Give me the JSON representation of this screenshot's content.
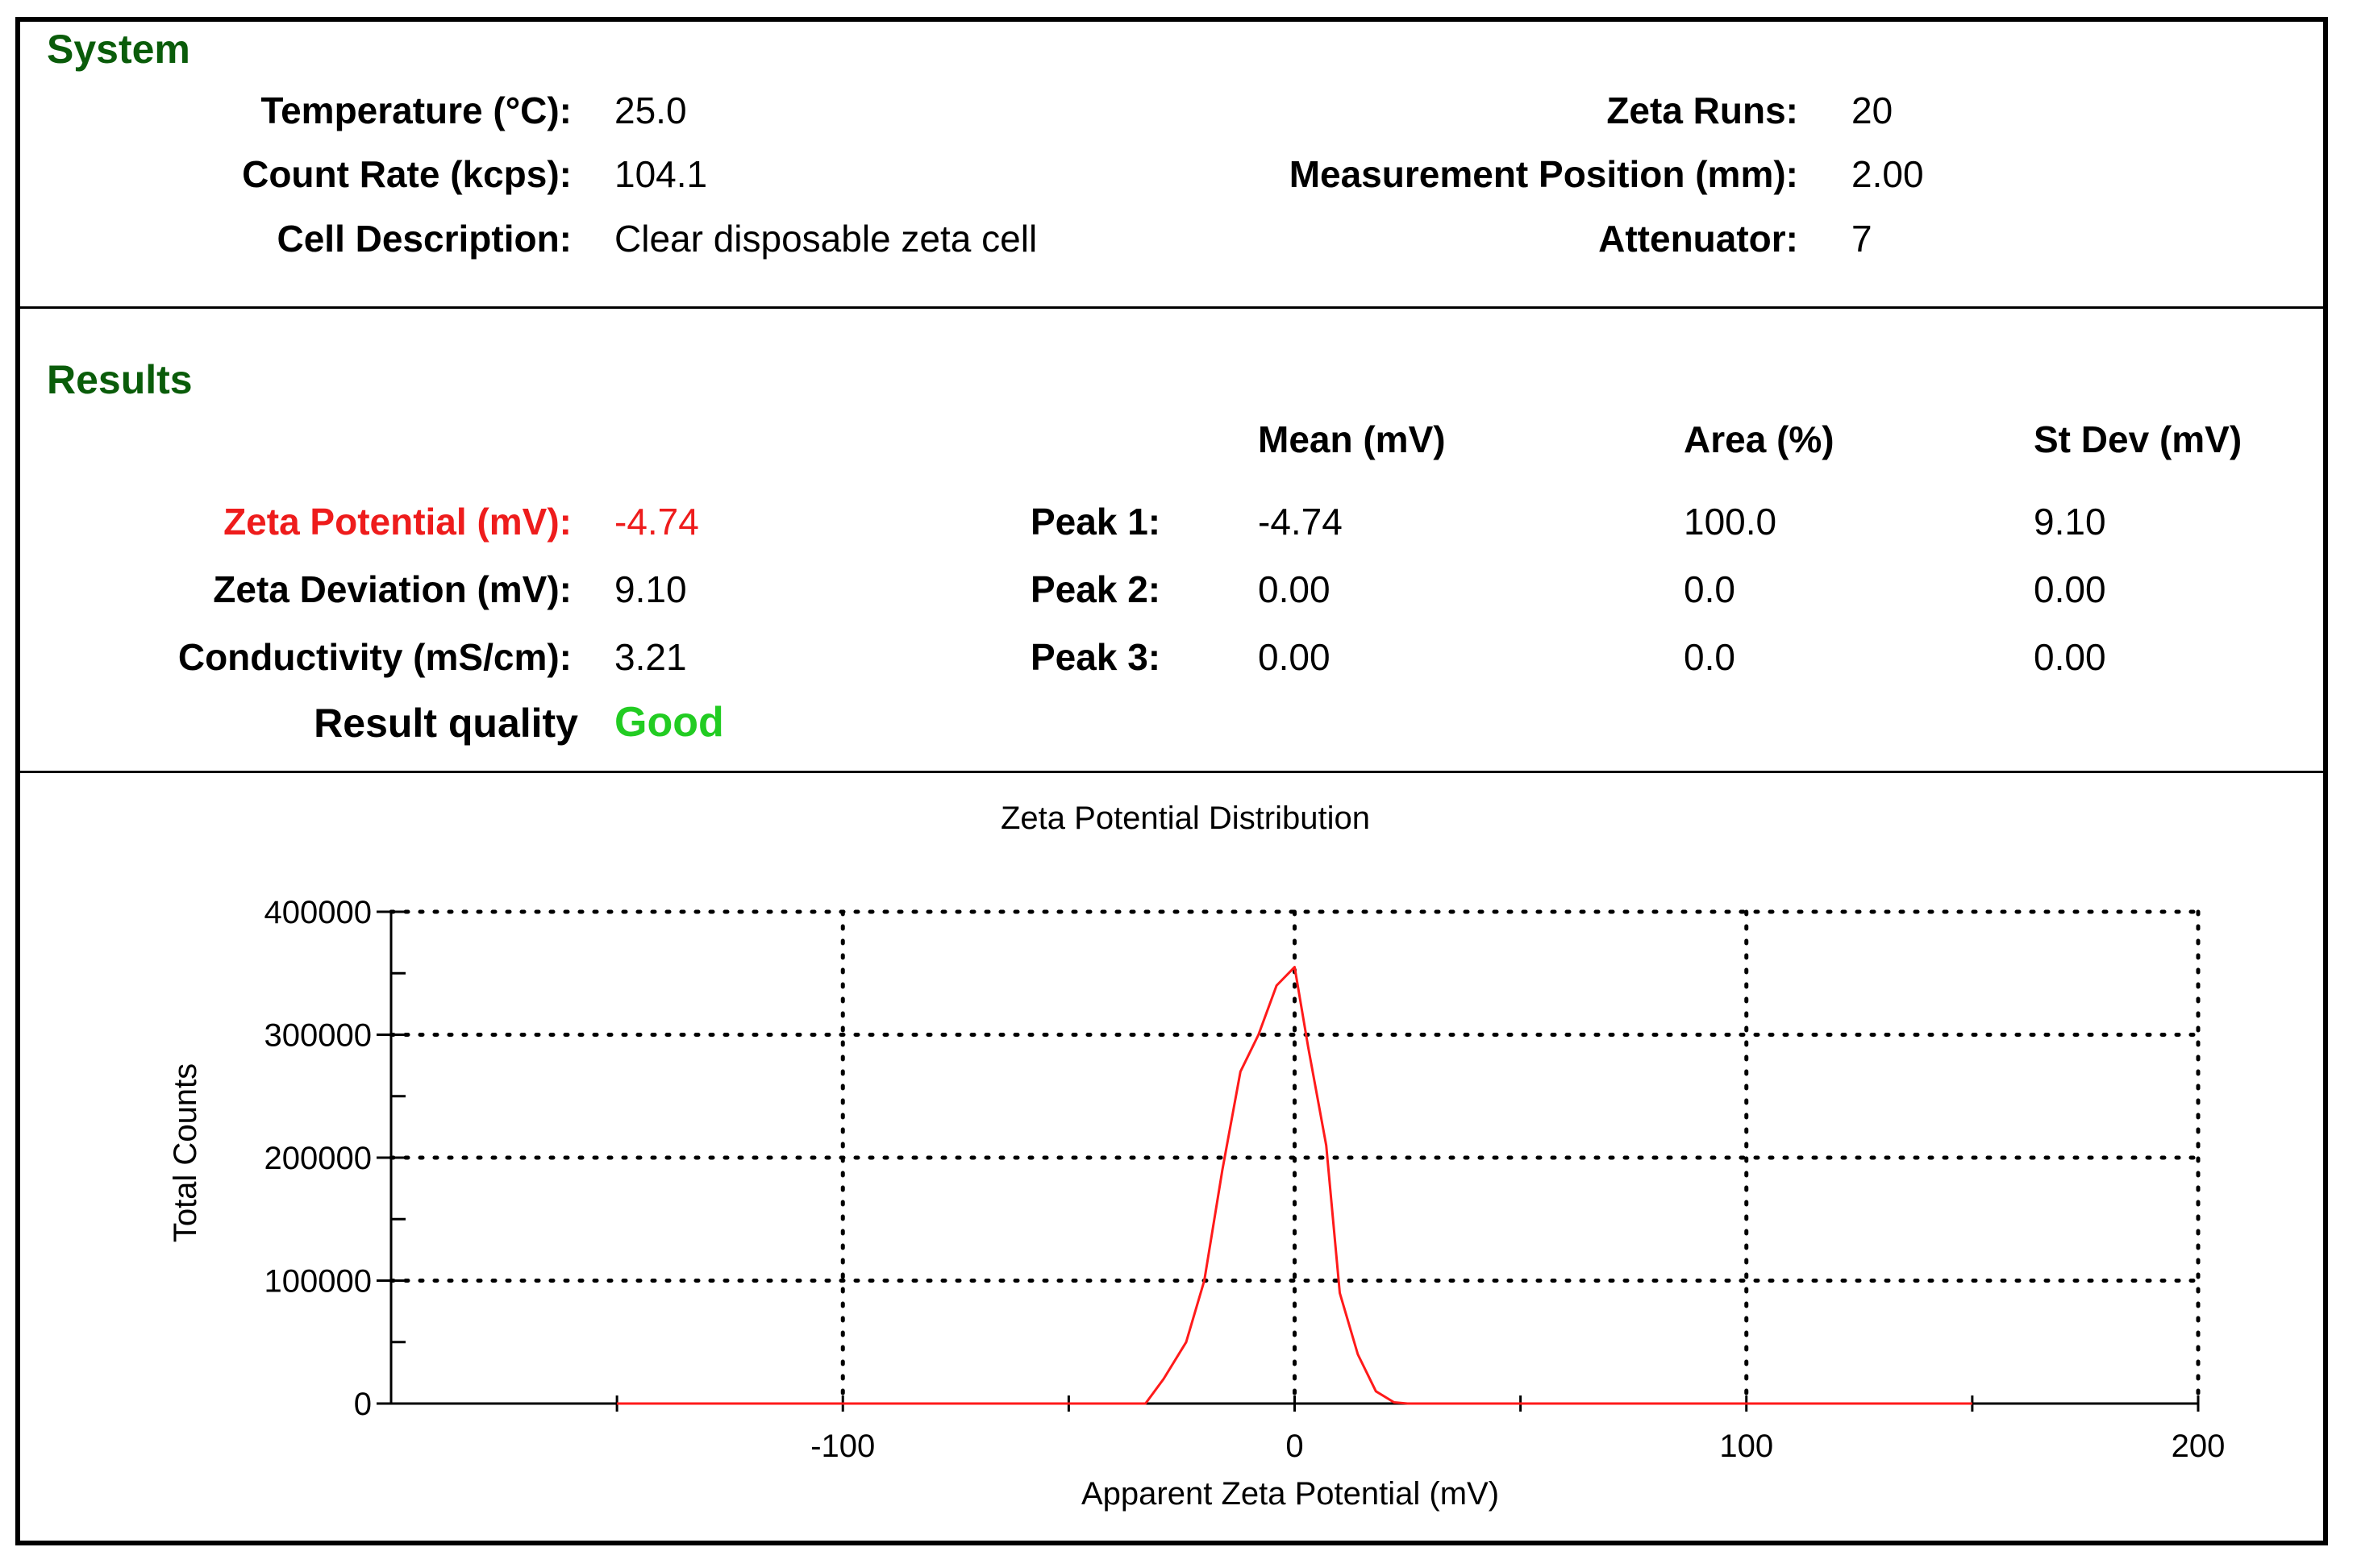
{
  "system": {
    "title": "System",
    "temperature_label": "Temperature (°C):",
    "temperature_value": "25.0",
    "count_rate_label": "Count Rate (kcps):",
    "count_rate_value": "104.1",
    "cell_label": "Cell Description:",
    "cell_value": "Clear disposable zeta cell",
    "runs_label": "Zeta Runs:",
    "runs_value": "20",
    "position_label": "Measurement Position (mm):",
    "position_value": "2.00",
    "attenuator_label": "Attenuator:",
    "attenuator_value": "7"
  },
  "results": {
    "title": "Results",
    "zeta_potential_label": "Zeta Potential (mV):",
    "zeta_potential_value": "-4.74",
    "zeta_deviation_label": "Zeta Deviation (mV):",
    "zeta_deviation_value": "9.10",
    "conductivity_label": "Conductivity (mS/cm):",
    "conductivity_value": "3.21",
    "quality_label": "Result quality",
    "quality_value": "Good",
    "col_mean": "Mean (mV)",
    "col_area": "Area (%)",
    "col_stdev": "St Dev (mV)",
    "peaks": [
      {
        "label": "Peak 1:",
        "mean": "-4.74",
        "area": "100.0",
        "stdev": "9.10"
      },
      {
        "label": "Peak 2:",
        "mean": "0.00",
        "area": "0.0",
        "stdev": "0.00"
      },
      {
        "label": "Peak 3:",
        "mean": "0.00",
        "area": "0.0",
        "stdev": "0.00"
      }
    ]
  },
  "colors": {
    "accent_text": "#0a5c0a",
    "zeta_red": "#ee1c1c",
    "good_green": "#22cc22",
    "series": "#ff1a1a"
  },
  "chart_data": {
    "type": "line",
    "title": "Zeta Potential Distribution",
    "xlabel": "Apparent Zeta Potential (mV)",
    "ylabel": "Total Counts",
    "xlim": [
      -200,
      200
    ],
    "ylim": [
      0,
      400000
    ],
    "xticks": [
      -100,
      0,
      100,
      200
    ],
    "xtick_labels": [
      "-100",
      "0",
      "100",
      "200"
    ],
    "yticks": [
      0,
      100000,
      200000,
      300000,
      400000
    ],
    "ytick_labels": [
      "0",
      "100000",
      "200000",
      "300000",
      "400000"
    ],
    "grid": true,
    "series": [
      {
        "x": [
          -150,
          -33,
          -29,
          -24,
          -20,
          -16,
          -12,
          -8,
          -4,
          0,
          3,
          7,
          10,
          14,
          18,
          22,
          25,
          150
        ],
        "y": [
          0,
          0,
          20000,
          50000,
          100000,
          190000,
          270000,
          300000,
          340000,
          355000,
          290000,
          210000,
          90000,
          40000,
          10000,
          1000,
          0,
          0
        ]
      }
    ]
  }
}
